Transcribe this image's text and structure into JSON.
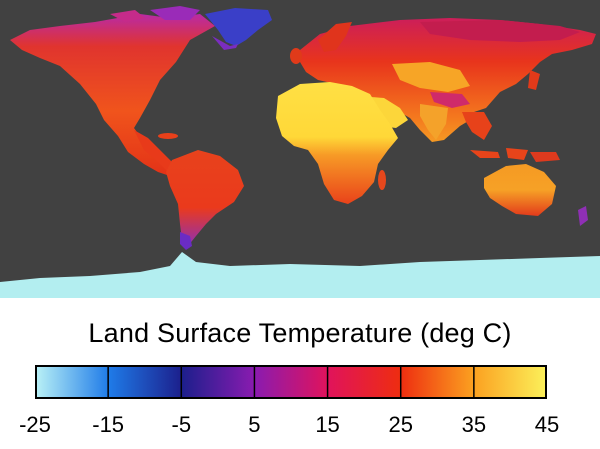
{
  "map": {
    "colors": {
      "ocean": "#414141",
      "antarctica": "#b3eef0",
      "greenland": "#3a3fc8"
    }
  },
  "legend": {
    "title": "Land Surface Temperature (deg C)",
    "ticks": [
      "-25",
      "-15",
      "-5",
      "5",
      "15",
      "25",
      "35",
      "45"
    ],
    "range": [
      -25,
      45
    ],
    "stops": [
      {
        "value": -25,
        "color": "#b9f1f6"
      },
      {
        "value": -15,
        "color": "#1f7be8"
      },
      {
        "value": -5,
        "color": "#1c1f8c"
      },
      {
        "value": 5,
        "color": "#8a1bb0"
      },
      {
        "value": 15,
        "color": "#e0135c"
      },
      {
        "value": 25,
        "color": "#ee2d10"
      },
      {
        "value": 35,
        "color": "#fba020"
      },
      {
        "value": 45,
        "color": "#fbf05a"
      }
    ]
  }
}
